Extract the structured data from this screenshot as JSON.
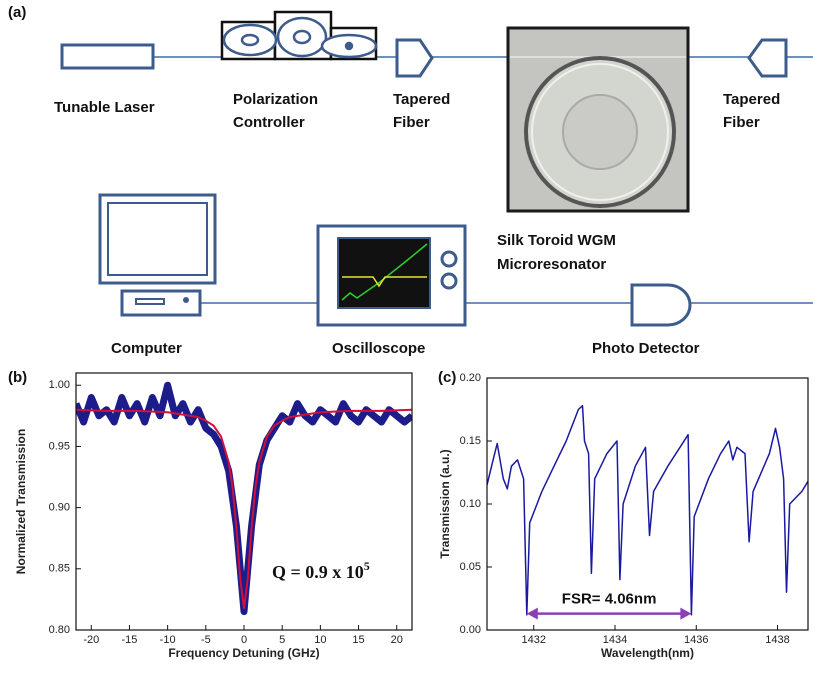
{
  "panel_labels": [
    "(a)",
    "(b)",
    "(c)"
  ],
  "diagram": {
    "labels": {
      "laser": "Tunable Laser",
      "polarization": [
        "Polarization",
        "Controller"
      ],
      "taper_in": [
        "Tapered",
        "Fiber"
      ],
      "taper_out": [
        "Tapered",
        "Fiber"
      ],
      "resonator": [
        "Silk Toroid WGM",
        "Microresonator"
      ],
      "computer": "Computer",
      "oscilloscope": "Oscilloscope",
      "detector": "Photo Detector"
    }
  },
  "chart_data": [
    {
      "type": "line",
      "xlabel": "Frequency Detuning (GHz)",
      "ylabel": "Normalized Transmission",
      "annotation": "Q = 0.9 x 10",
      "annotation_superscript": "5",
      "xlim": [
        -22,
        22
      ],
      "xticks": [
        -20,
        -15,
        -10,
        -5,
        0,
        5,
        10,
        15,
        20
      ],
      "ylim": [
        0.8,
        1.01
      ],
      "yticks": [
        {
          "value": 0.8,
          "label": "0.80"
        },
        0.85,
        {
          "value": 0.9,
          "label": "0.90"
        },
        0.95,
        {
          "value": 1,
          "label": "1.00"
        }
      ],
      "series": [
        {
          "color": "#1c1c8a",
          "x": [
            -22,
            -21,
            -20,
            -19,
            -18,
            -17,
            -16,
            -15,
            -14,
            -13,
            -12,
            -11,
            -10,
            -9,
            -8,
            -7,
            -6,
            -5,
            -4,
            -3,
            -2,
            -1,
            0,
            1,
            2,
            3,
            4,
            5,
            6,
            7,
            8,
            9,
            10,
            11,
            12,
            13,
            14,
            15,
            16,
            17,
            18,
            19,
            20,
            21,
            22
          ],
          "values": [
            0.985,
            0.97,
            0.99,
            0.975,
            0.98,
            0.97,
            0.99,
            0.975,
            0.985,
            0.97,
            0.99,
            0.975,
            1.0,
            0.975,
            0.985,
            0.97,
            0.98,
            0.965,
            0.96,
            0.95,
            0.93,
            0.885,
            0.815,
            0.885,
            0.935,
            0.955,
            0.965,
            0.975,
            0.97,
            0.985,
            0.975,
            0.97,
            0.98,
            0.975,
            0.97,
            0.985,
            0.975,
            0.97,
            0.98,
            0.975,
            0.97,
            0.98,
            0.975,
            0.97,
            0.975
          ]
        },
        {
          "color": "#d0103a",
          "x": [
            -22,
            -18,
            -14,
            -10,
            -8,
            -6,
            -5,
            -4,
            -3,
            -2,
            -1.5,
            -1,
            -0.5,
            0,
            0.5,
            1,
            1.5,
            2,
            3,
            4,
            5,
            6,
            8,
            10,
            14,
            18,
            22
          ],
          "values": [
            0.98,
            0.979,
            0.979,
            0.978,
            0.976,
            0.974,
            0.971,
            0.967,
            0.958,
            0.937,
            0.917,
            0.884,
            0.842,
            0.818,
            0.842,
            0.884,
            0.917,
            0.937,
            0.958,
            0.967,
            0.971,
            0.974,
            0.976,
            0.978,
            0.979,
            0.979,
            0.98
          ]
        }
      ]
    },
    {
      "type": "line",
      "xlabel": "Wavelength(nm)",
      "ylabel": "Transmission (a.u.)",
      "annotation": "FSR= 4.06nm",
      "xlim": [
        1430.85,
        1438.75
      ],
      "xticks": [
        1432,
        1434,
        1436,
        1438
      ],
      "ylim": [
        0,
        0.2
      ],
      "yticks": [
        {
          "value": 0,
          "label": "0.00"
        },
        0.05,
        {
          "value": 0.1,
          "label": "0.10"
        },
        0.15,
        {
          "value": 0.2,
          "label": "0.20"
        }
      ],
      "arrow": {
        "x": [
          1431.83,
          1435.88
        ],
        "y": 0.013,
        "color": "#8b3fb5"
      },
      "series": [
        {
          "color": "#1a1aa0",
          "x": [
            1430.85,
            1431.0,
            1431.1,
            1431.25,
            1431.35,
            1431.45,
            1431.6,
            1431.75,
            1431.83,
            1431.9,
            1432.2,
            1432.5,
            1432.8,
            1433.1,
            1433.2,
            1433.25,
            1433.35,
            1433.42,
            1433.5,
            1433.8,
            1434.05,
            1434.12,
            1434.2,
            1434.5,
            1434.75,
            1434.85,
            1434.95,
            1435.3,
            1435.6,
            1435.8,
            1435.88,
            1435.95,
            1436.3,
            1436.6,
            1436.8,
            1436.9,
            1437.0,
            1437.2,
            1437.3,
            1437.4,
            1437.8,
            1437.95,
            1438.05,
            1438.15,
            1438.22,
            1438.3,
            1438.6,
            1438.75
          ],
          "values": [
            0.115,
            0.135,
            0.148,
            0.12,
            0.112,
            0.13,
            0.135,
            0.12,
            0.012,
            0.085,
            0.11,
            0.13,
            0.15,
            0.175,
            0.178,
            0.15,
            0.14,
            0.045,
            0.12,
            0.14,
            0.15,
            0.04,
            0.1,
            0.13,
            0.145,
            0.075,
            0.11,
            0.13,
            0.145,
            0.155,
            0.012,
            0.09,
            0.12,
            0.14,
            0.15,
            0.135,
            0.145,
            0.14,
            0.07,
            0.11,
            0.14,
            0.16,
            0.145,
            0.12,
            0.03,
            0.1,
            0.11,
            0.118
          ]
        }
      ]
    }
  ]
}
